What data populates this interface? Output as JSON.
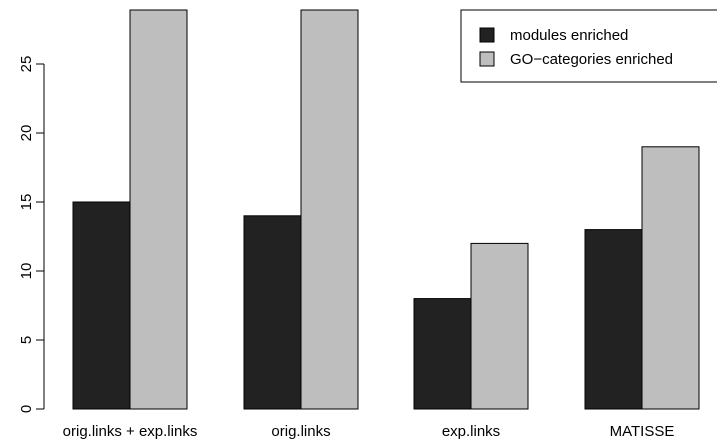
{
  "chart_data": {
    "type": "bar",
    "categories": [
      "orig.links + exp.links",
      "orig.links",
      "exp.links",
      "MATISSE"
    ],
    "series": [
      {
        "name": "modules enriched",
        "values": [
          15,
          14,
          8,
          13
        ],
        "color": "#222222"
      },
      {
        "name": "GO−categories enriched",
        "values": [
          29,
          29,
          12,
          19
        ],
        "color": "#bebebe"
      }
    ],
    "y_ticks": [
      "0",
      "5",
      "10",
      "15",
      "20",
      "25"
    ],
    "ylim": [
      0,
      29
    ],
    "grid": false,
    "legend_position": "top-right"
  }
}
